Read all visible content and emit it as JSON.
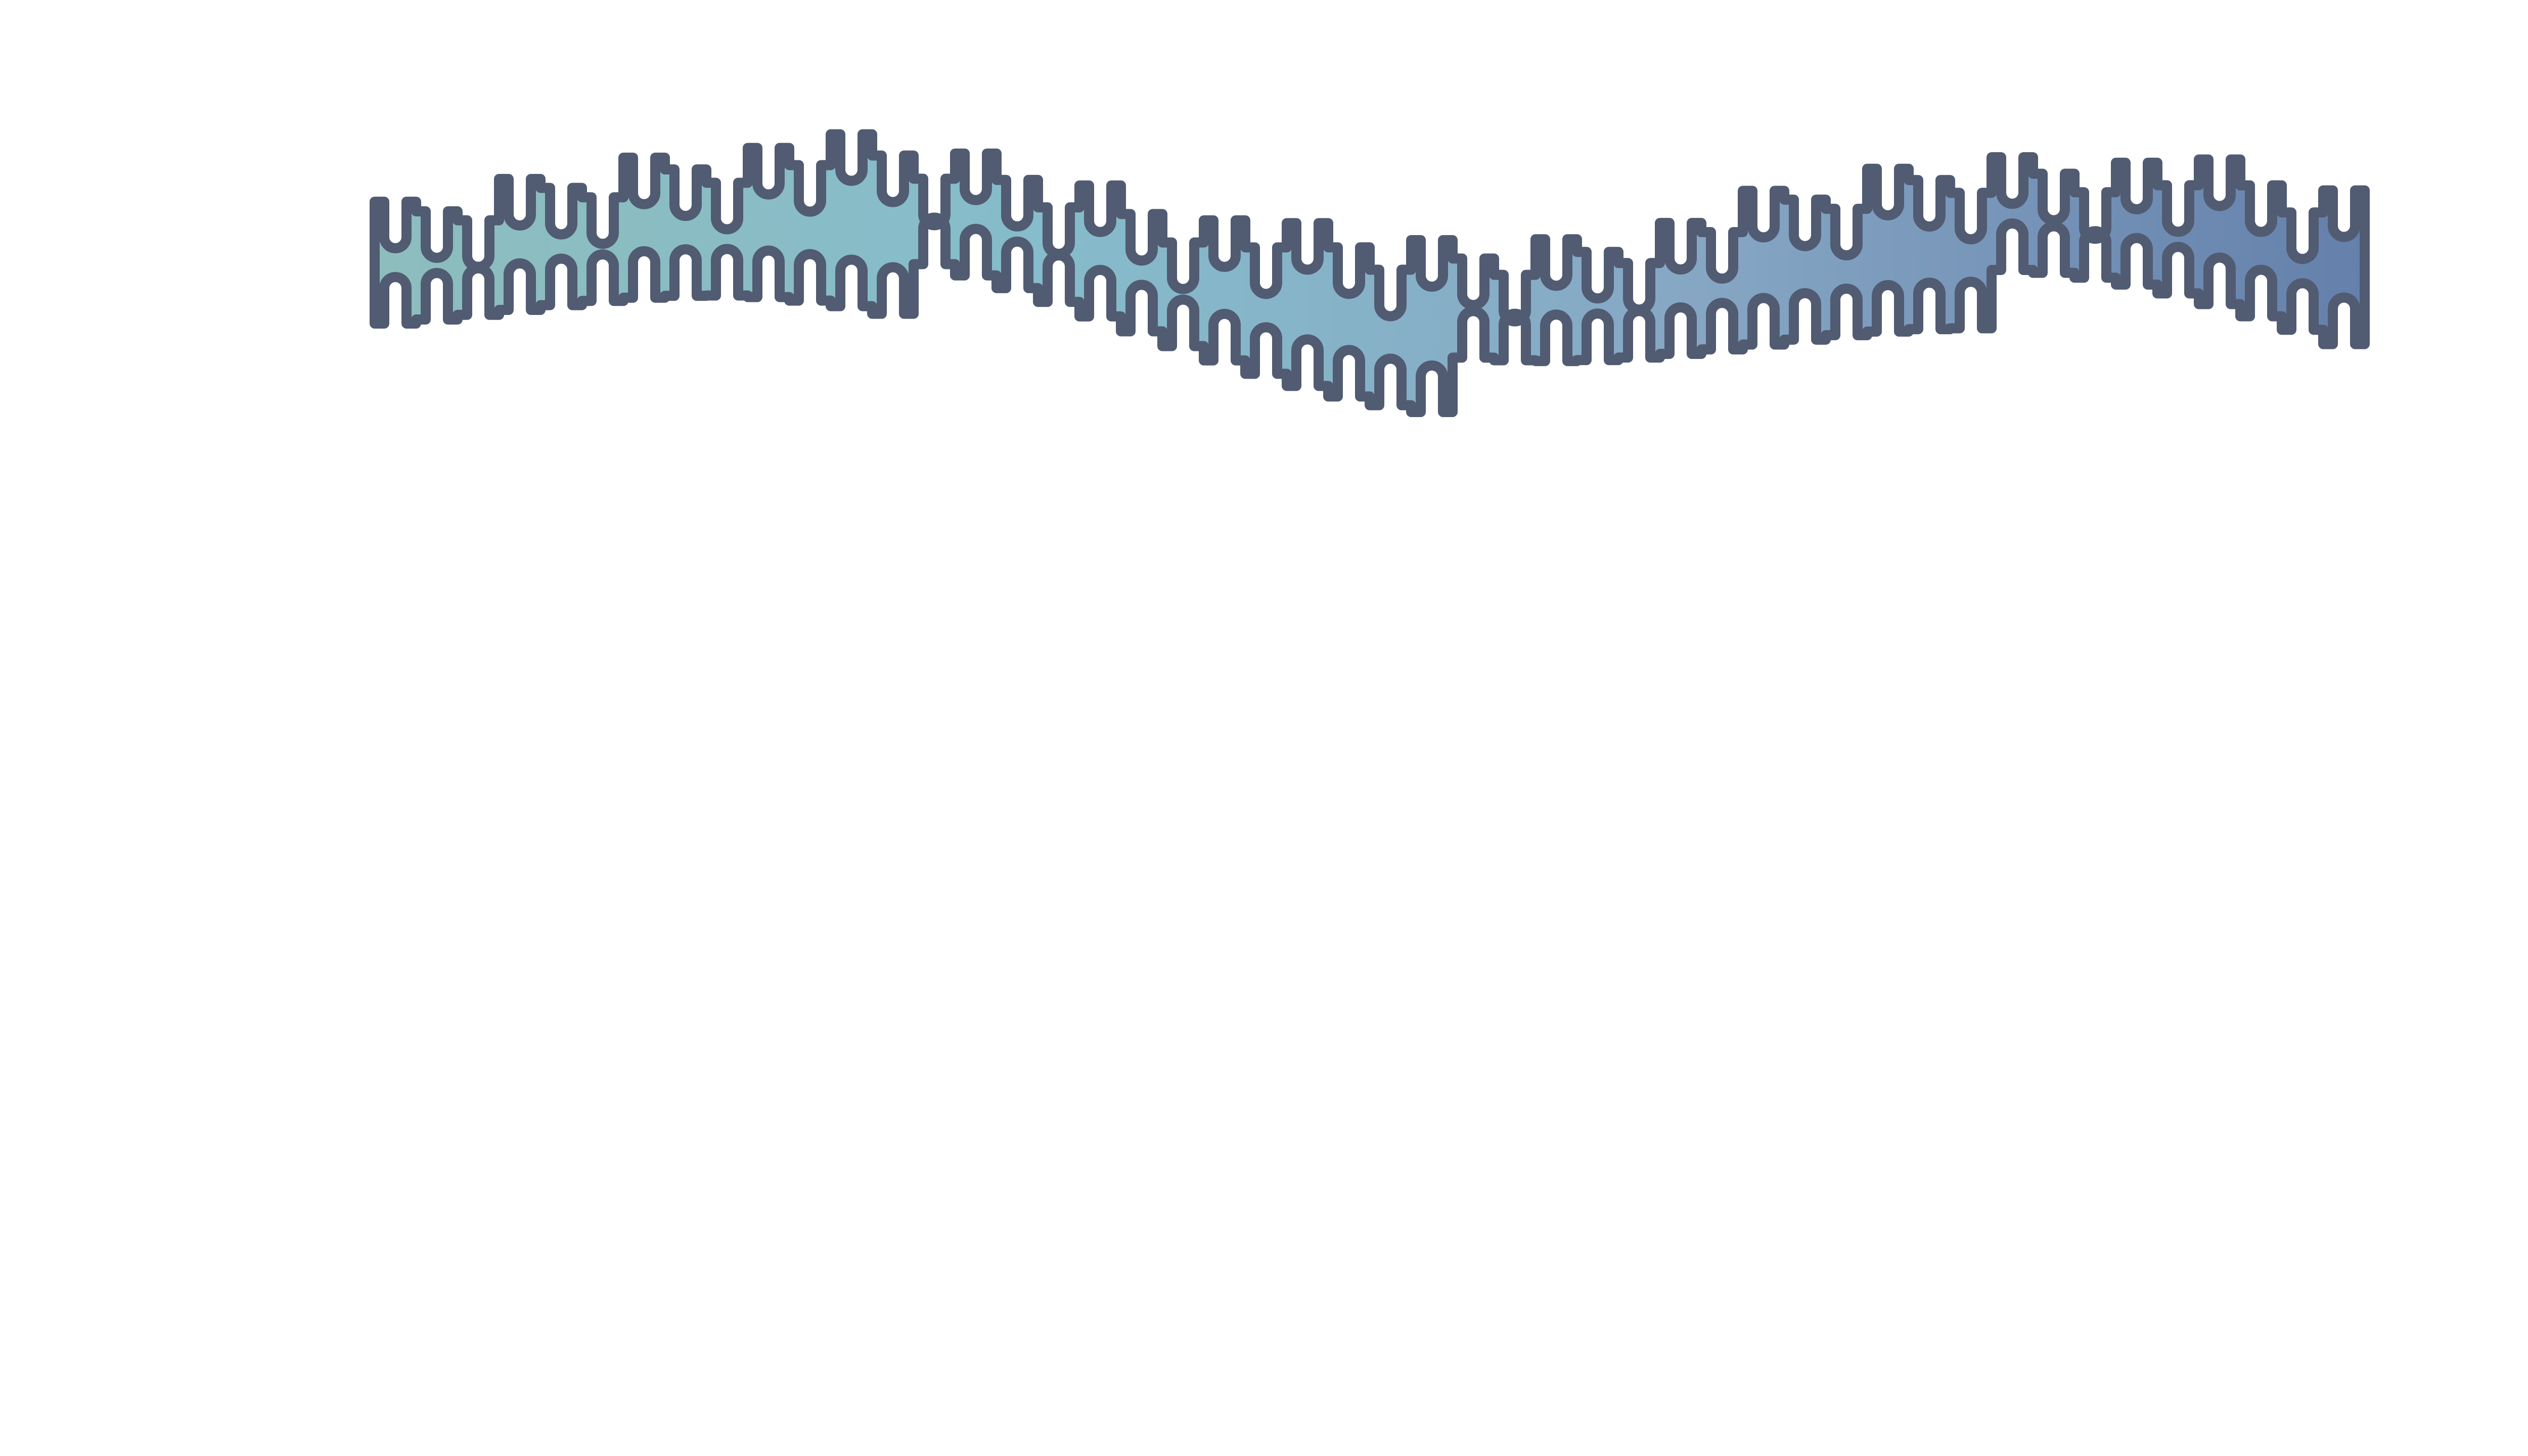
{
  "artwork": {
    "icon": "wavy-squiggle-band-icon",
    "gradient_colors": [
      "#8dbdbd",
      "#86bccb",
      "#86a7c4",
      "#6480ab"
    ],
    "outline_color": "#515b72",
    "background_color": "#ffffff"
  }
}
